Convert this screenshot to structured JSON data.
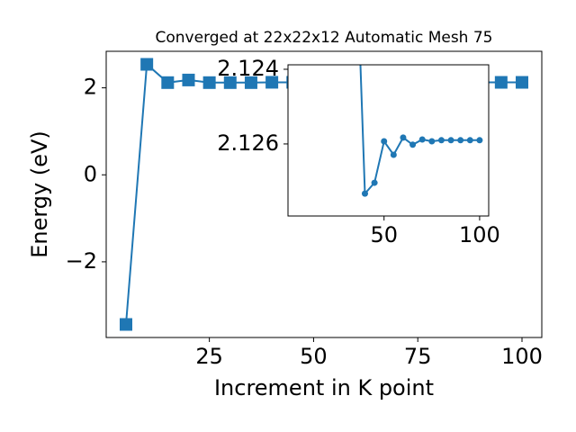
{
  "chart_data": [
    {
      "type": "line",
      "title": "Converged at 22x22x12 Automatic Mesh 75",
      "x_label": "Increment in K point",
      "y_label": "Energy (eV)",
      "x": [
        5,
        10,
        15,
        20,
        25,
        30,
        35,
        40,
        45,
        50,
        55,
        60,
        65,
        70,
        75,
        80,
        85,
        90,
        95,
        100
      ],
      "series": [
        {
          "color": "#1f77b4",
          "marker": "square",
          "values": [
            -3.44,
            2.54,
            2.12,
            2.18,
            2.12,
            2.12,
            2.12,
            2.1273,
            2.127,
            2.1259,
            2.1263,
            2.1258,
            2.126,
            2.1259,
            2.1259,
            2.1259,
            2.1259,
            2.1259,
            2.1259,
            2.1259
          ]
        }
      ],
      "xlim": [
        0.25,
        104.75
      ],
      "ylim": [
        -3.74,
        2.84
      ],
      "xticks": [
        25,
        50,
        75,
        100
      ],
      "yticks": [
        {
          "value": -2,
          "label": "−2"
        },
        0,
        2
      ]
    },
    {
      "type": "line",
      "x": [
        35,
        40,
        45,
        50,
        55,
        60,
        65,
        70,
        75,
        80,
        85,
        90,
        95,
        100
      ],
      "series": [
        {
          "color": "#1f77b4",
          "marker": "circle",
          "values": [
            2.12,
            2.12733,
            2.12704,
            2.12593,
            2.12629,
            2.12583,
            2.12602,
            2.12588,
            2.12593,
            2.1259,
            2.1259,
            2.1259,
            2.1259,
            2.1259
          ]
        }
      ],
      "xlim": [
        -0.25,
        104.75
      ],
      "ylim": [
        2.12793,
        2.12388
      ],
      "y_inverted": true,
      "xticks": [
        50,
        100
      ],
      "yticks": [
        2.124,
        2.126
      ]
    }
  ]
}
